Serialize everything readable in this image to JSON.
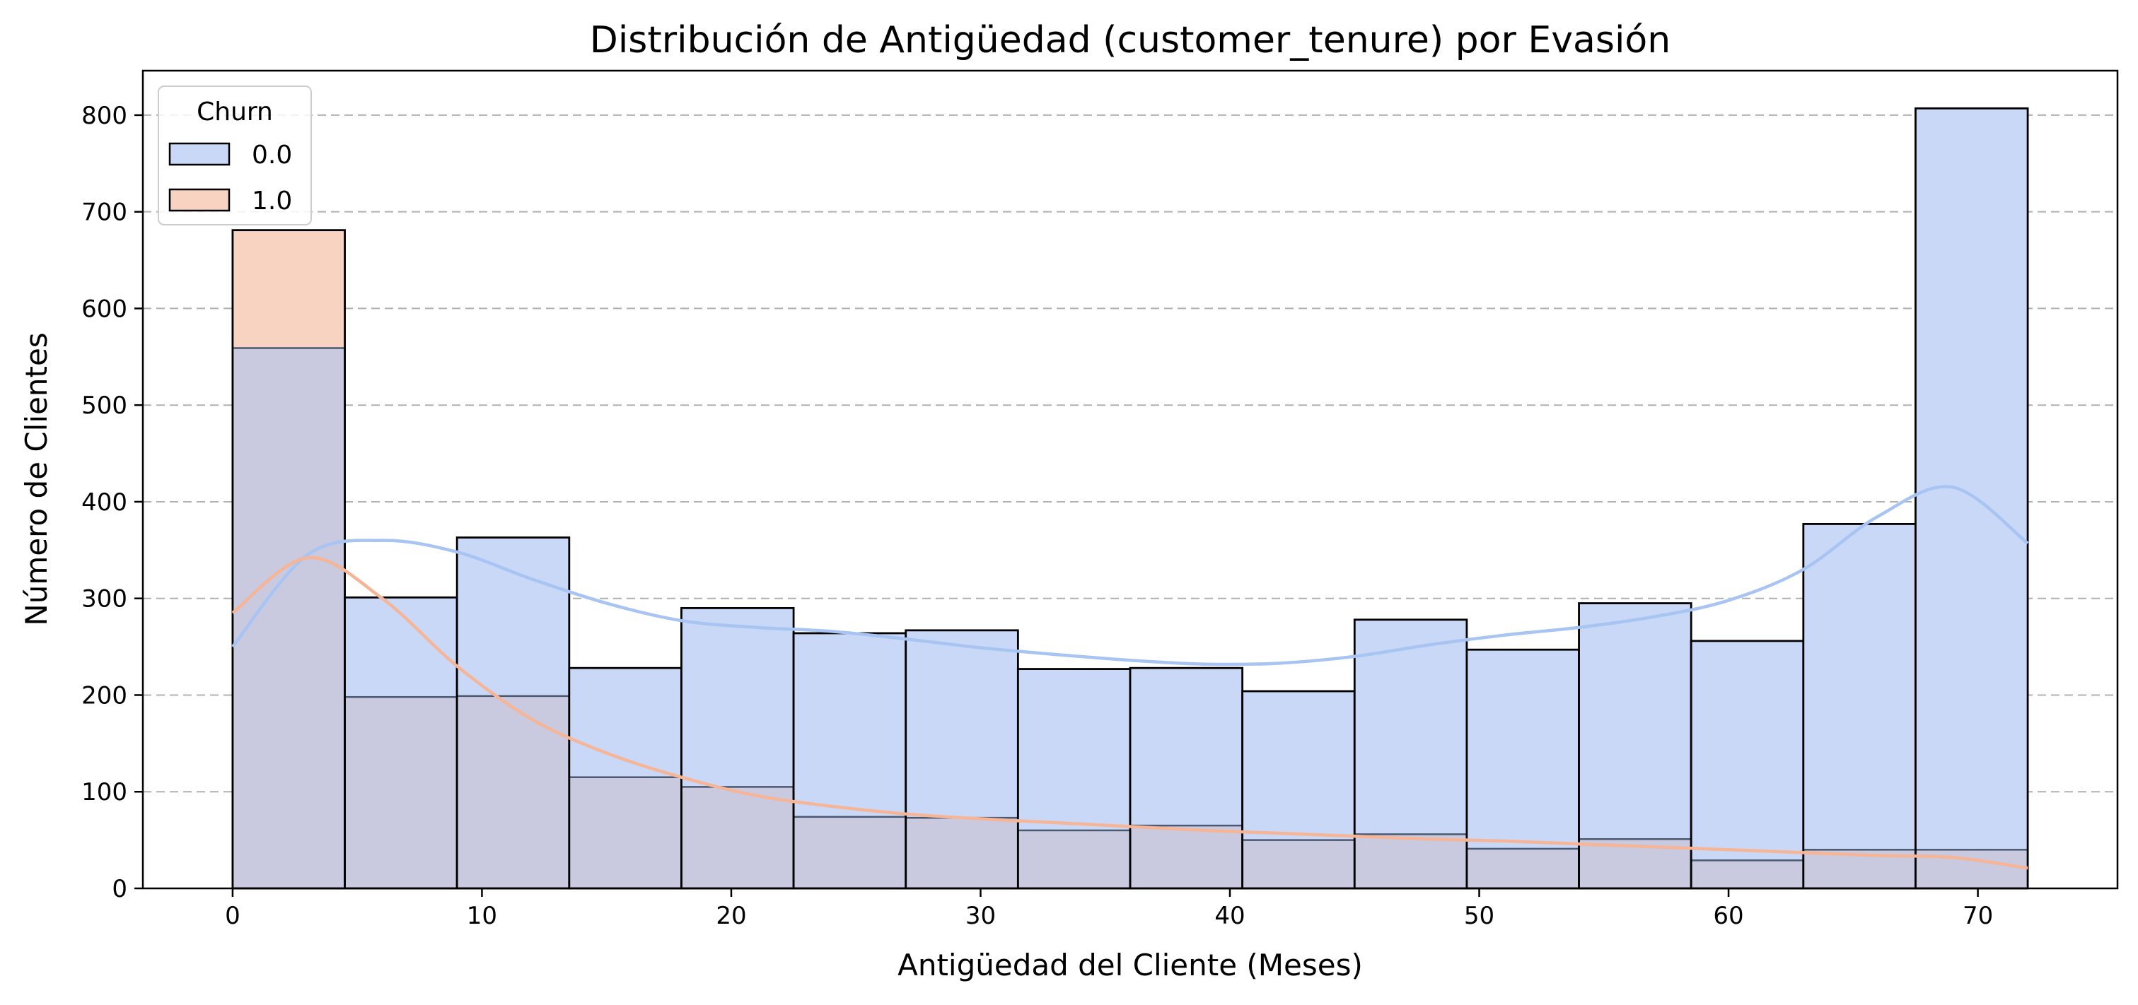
{
  "chart_data": {
    "type": "bar",
    "subtype": "overlapping-histogram-with-kde",
    "title": "Distribución de Antigüedad (customer_tenure) por Evasión",
    "xlabel": "Antigüedad del Cliente (Meses)",
    "ylabel": "Número de Clientes",
    "xlim": [
      -3.6,
      75.6
    ],
    "ylim": [
      0,
      846
    ],
    "xticks": [
      0,
      10,
      20,
      30,
      40,
      50,
      60,
      70
    ],
    "yticks": [
      0,
      100,
      200,
      300,
      400,
      500,
      600,
      700,
      800
    ],
    "grid": "y-dashed",
    "bin_edges": [
      0,
      4.5,
      9,
      13.5,
      18,
      22.5,
      27,
      31.5,
      36,
      40.5,
      45,
      49.5,
      54,
      58.5,
      63,
      67.5,
      72
    ],
    "legend": {
      "title": "Churn",
      "position": "top-left"
    },
    "series": [
      {
        "name": "0.0",
        "fill_color": "#c9d8f7",
        "line_color": "#a8c4f2",
        "values": [
          559,
          301,
          363,
          228,
          290,
          264,
          267,
          227,
          228,
          204,
          278,
          247,
          295,
          256,
          377,
          807
        ],
        "kde_x": [
          0,
          3,
          6,
          9,
          12,
          15,
          18,
          21,
          24,
          27,
          30,
          33,
          36,
          39,
          42,
          45,
          48,
          51,
          54,
          57,
          60,
          63,
          66,
          69,
          72
        ],
        "kde_y": [
          250,
          345,
          360,
          348,
          320,
          295,
          277,
          270,
          266,
          258,
          249,
          242,
          236,
          232,
          233,
          240,
          252,
          262,
          270,
          281,
          298,
          330,
          385,
          415,
          357
        ]
      },
      {
        "name": "1.0",
        "fill_color": "#f9d3c1",
        "line_color": "#f5b596",
        "values": [
          681,
          198,
          199,
          115,
          105,
          74,
          73,
          60,
          65,
          50,
          56,
          41,
          51,
          29,
          40,
          40
        ],
        "kde_x": [
          0,
          3,
          6,
          9,
          12,
          15,
          18,
          21,
          24,
          27,
          30,
          33,
          36,
          39,
          42,
          45,
          48,
          51,
          54,
          57,
          60,
          63,
          66,
          69,
          72
        ],
        "kde_y": [
          285,
          342,
          300,
          230,
          175,
          140,
          115,
          96,
          85,
          77,
          72,
          68,
          64,
          60,
          57,
          54,
          51,
          49,
          46,
          43,
          40,
          37,
          34,
          32,
          21
        ]
      }
    ],
    "overlap_color": "#c9c9e0"
  }
}
